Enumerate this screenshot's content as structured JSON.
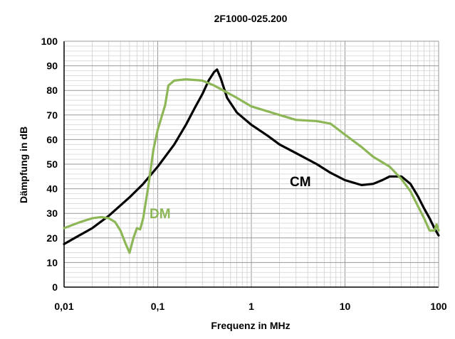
{
  "chart_data": {
    "type": "line",
    "title": "2F1000-025.200",
    "xlabel": "Frequenz in MHz",
    "ylabel": "Dämpfung in dB",
    "x_scale": "log",
    "xlim": [
      0.01,
      100
    ],
    "ylim": [
      0,
      100
    ],
    "grid": true,
    "x_ticks": [
      "0,01",
      "0,1",
      "1",
      "10",
      "100"
    ],
    "y_ticks": [
      "0",
      "10",
      "20",
      "30",
      "40",
      "50",
      "60",
      "70",
      "80",
      "90",
      "100"
    ],
    "series": [
      {
        "name": "CM",
        "color": "#000000",
        "points": [
          [
            0.01,
            17.5
          ],
          [
            0.013,
            20
          ],
          [
            0.02,
            24
          ],
          [
            0.03,
            29
          ],
          [
            0.05,
            36.5
          ],
          [
            0.07,
            42
          ],
          [
            0.1,
            49
          ],
          [
            0.15,
            58
          ],
          [
            0.2,
            66
          ],
          [
            0.25,
            73
          ],
          [
            0.3,
            78.5
          ],
          [
            0.35,
            84
          ],
          [
            0.4,
            87.5
          ],
          [
            0.43,
            88.5
          ],
          [
            0.47,
            85
          ],
          [
            0.55,
            77
          ],
          [
            0.7,
            71
          ],
          [
            1,
            66
          ],
          [
            1.5,
            61.5
          ],
          [
            2,
            58
          ],
          [
            3,
            54.5
          ],
          [
            5,
            50
          ],
          [
            7,
            46.5
          ],
          [
            10,
            43.5
          ],
          [
            15,
            41.5
          ],
          [
            20,
            42
          ],
          [
            25,
            43.5
          ],
          [
            30,
            45
          ],
          [
            40,
            45
          ],
          [
            50,
            42
          ],
          [
            60,
            37
          ],
          [
            70,
            32
          ],
          [
            80,
            28
          ],
          [
            90,
            24
          ],
          [
            100,
            21
          ]
        ]
      },
      {
        "name": "DM",
        "color": "#8db756",
        "points": [
          [
            0.01,
            24
          ],
          [
            0.015,
            26.5
          ],
          [
            0.02,
            28
          ],
          [
            0.025,
            28.5
          ],
          [
            0.03,
            28
          ],
          [
            0.035,
            26.5
          ],
          [
            0.04,
            23
          ],
          [
            0.045,
            18
          ],
          [
            0.05,
            14
          ],
          [
            0.055,
            20
          ],
          [
            0.06,
            24
          ],
          [
            0.065,
            23.5
          ],
          [
            0.07,
            28
          ],
          [
            0.08,
            42
          ],
          [
            0.09,
            56
          ],
          [
            0.1,
            64
          ],
          [
            0.12,
            74
          ],
          [
            0.13,
            82
          ],
          [
            0.15,
            84
          ],
          [
            0.2,
            84.5
          ],
          [
            0.3,
            84
          ],
          [
            0.4,
            82
          ],
          [
            0.5,
            80
          ],
          [
            0.7,
            77
          ],
          [
            1,
            73.5
          ],
          [
            2,
            70
          ],
          [
            3,
            68
          ],
          [
            5,
            67.5
          ],
          [
            7,
            66.5
          ],
          [
            10,
            62
          ],
          [
            15,
            57
          ],
          [
            20,
            53
          ],
          [
            30,
            49
          ],
          [
            40,
            44
          ],
          [
            50,
            39
          ],
          [
            60,
            33
          ],
          [
            70,
            28
          ],
          [
            80,
            23
          ],
          [
            90,
            23
          ],
          [
            95,
            25.5
          ],
          [
            100,
            23
          ]
        ]
      }
    ]
  }
}
